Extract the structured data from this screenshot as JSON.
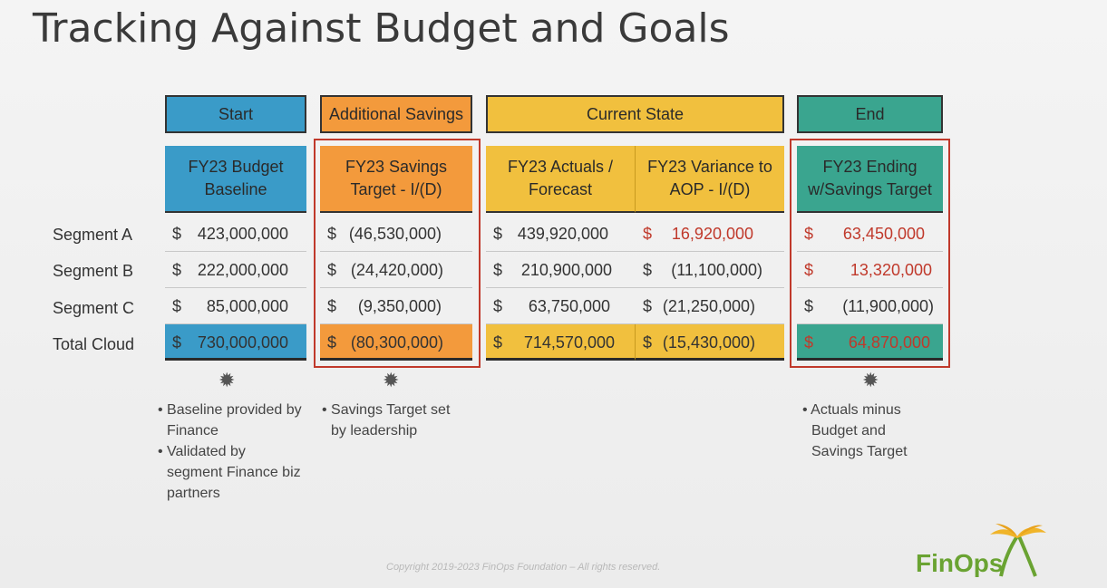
{
  "title": "Tracking Against Budget and Goals",
  "groups": {
    "start": "Start",
    "additional": "Additional Savings",
    "current": "Current State",
    "end": "End"
  },
  "columns": {
    "budget": [
      "FY23 Budget",
      "Baseline"
    ],
    "savings": [
      "FY23 Savings",
      "Target - I/(D)"
    ],
    "actuals": [
      "FY23 Actuals /",
      "Forecast"
    ],
    "variance": [
      "FY23 Variance to",
      "AOP  - I/(D)"
    ],
    "ending": [
      "FY23 Ending",
      "w/Savings Target"
    ]
  },
  "currency": "$",
  "rows": [
    {
      "label": "Segment A",
      "budget": "423,000,000",
      "savings": "(46,530,000)",
      "actuals": "439,920,000",
      "variance": "16,920,000",
      "ending": "63,450,000"
    },
    {
      "label": "Segment B",
      "budget": "222,000,000",
      "savings": "(24,420,000)",
      "actuals": "210,900,000",
      "variance": "(11,100,000)",
      "ending": "13,320,000"
    },
    {
      "label": "Segment C",
      "budget": "85,000,000",
      "savings": "(9,350,000)",
      "actuals": "63,750,000",
      "variance": "(21,250,000)",
      "ending": "(11,900,000)"
    },
    {
      "label": "Total Cloud",
      "budget": "730,000,000",
      "savings": "(80,300,000)",
      "actuals": "714,570,000",
      "variance": "(15,430,000)",
      "ending": "64,870,000"
    }
  ],
  "notes": {
    "start": [
      "Baseline provided by Finance",
      "Validated by segment Finance biz partners"
    ],
    "savings": [
      "Savings Target set by leadership"
    ],
    "end": [
      "Actuals minus Budget and Savings Target"
    ]
  },
  "colors": {
    "blue": "#3a9bc8",
    "orange": "#f39a3c",
    "gold": "#f1c03e",
    "teal": "#3aa58f",
    "red": "#c0392b"
  },
  "copyright": "Copyright 2019-2023 FinOps Foundation – All rights reserved.",
  "logo": "FinOps"
}
